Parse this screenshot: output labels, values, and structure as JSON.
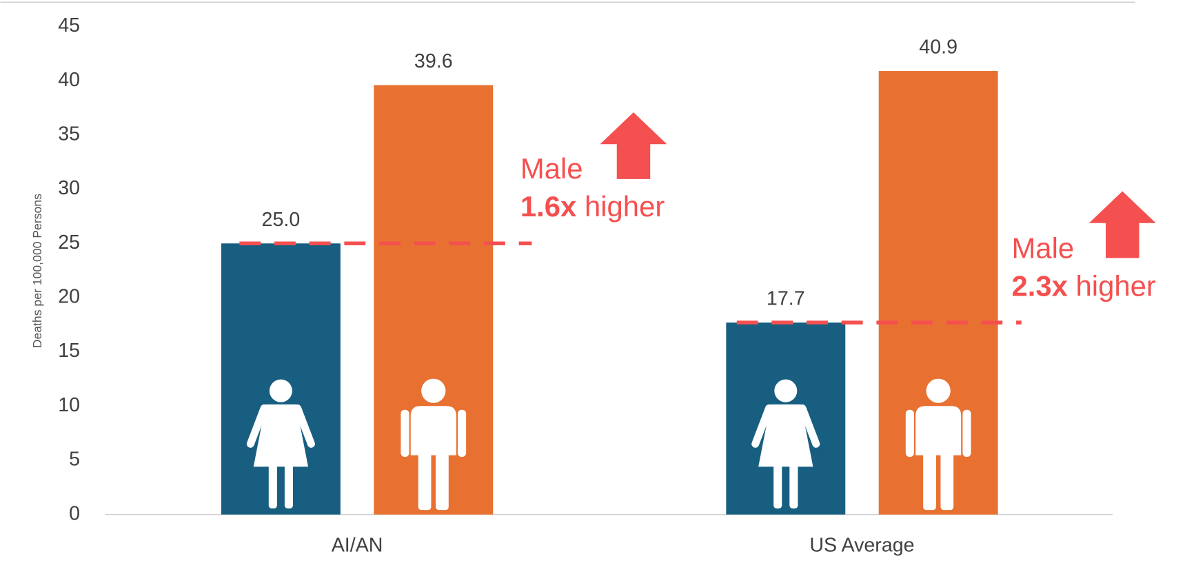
{
  "chart_data": {
    "type": "bar",
    "y_label": "Deaths per 100,000 Persons",
    "categories": [
      "AI/AN",
      "US Average"
    ],
    "series": [
      {
        "color": "#175e80",
        "values": [
          25.0,
          17.7
        ],
        "value_labels": [
          "25.0",
          "17.7"
        ]
      },
      {
        "color": "#e87131",
        "values": [
          39.6,
          40.9
        ],
        "value_labels": [
          "39.6",
          "40.9"
        ]
      }
    ],
    "ylim": [
      0,
      45
    ],
    "yticks": [
      0,
      5,
      10,
      15,
      20,
      25,
      30,
      35,
      40,
      45
    ],
    "annotations": [
      {
        "title": "Male",
        "ratio": "1.6x",
        "text": "higher",
        "color": "#f4504f"
      },
      {
        "title": "Male",
        "ratio": "2.3x",
        "text": "higher",
        "color": "#f4504f"
      }
    ]
  }
}
